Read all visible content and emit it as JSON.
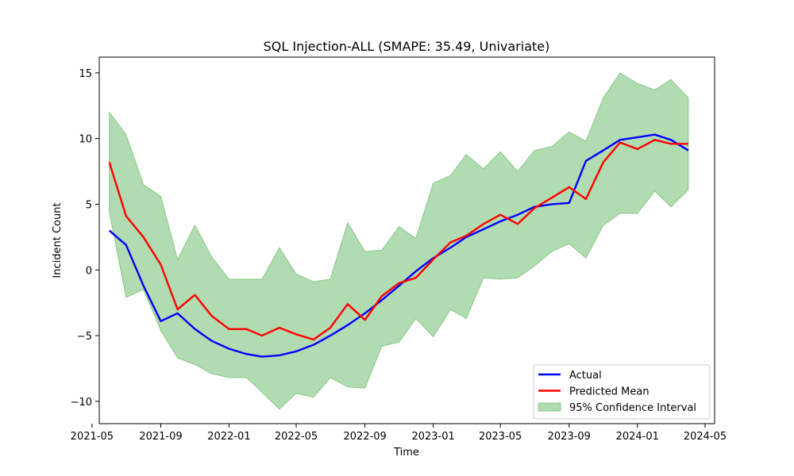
{
  "chart_data": {
    "type": "line",
    "title": "SQL Injection-ALL (SMAPE: 35.49, Univariate)",
    "xlabel": "Time",
    "ylabel": "Incident Count",
    "xlim": [
      "2021-05-14",
      "2024-05-18"
    ],
    "ylim": [
      -11.7,
      16.2
    ],
    "x_ticks": [
      "2021-05",
      "2021-09",
      "2022-01",
      "2022-05",
      "2022-09",
      "2023-01",
      "2023-05",
      "2023-09",
      "2024-01",
      "2024-05"
    ],
    "y_ticks": [
      -10,
      -5,
      0,
      5,
      10,
      15
    ],
    "x": [
      "2021-06",
      "2021-07",
      "2021-08",
      "2021-09",
      "2021-10",
      "2021-11",
      "2021-12",
      "2022-01",
      "2022-02",
      "2022-03",
      "2022-04",
      "2022-05",
      "2022-06",
      "2022-07",
      "2022-08",
      "2022-09",
      "2022-10",
      "2022-11",
      "2022-12",
      "2023-01",
      "2023-02",
      "2023-03",
      "2023-04",
      "2023-05",
      "2023-06",
      "2023-07",
      "2023-08",
      "2023-09",
      "2023-10",
      "2023-11",
      "2023-12",
      "2024-01",
      "2024-02",
      "2024-03",
      "2024-04"
    ],
    "series": [
      {
        "name": "Actual",
        "kind": "line",
        "color": "#0000ff",
        "values": [
          3.0,
          1.9,
          -1.2,
          -3.9,
          -3.3,
          -4.5,
          -5.4,
          -6.0,
          -6.4,
          -6.6,
          -6.5,
          -6.2,
          -5.7,
          -5.0,
          -4.2,
          -3.3,
          -2.3,
          -1.2,
          -0.1,
          0.9,
          1.7,
          2.5,
          3.1,
          3.7,
          4.2,
          4.8,
          5.0,
          5.1,
          8.3,
          9.1,
          9.9,
          10.1,
          10.3,
          9.9,
          9.1
        ]
      },
      {
        "name": "Predicted Mean",
        "kind": "line",
        "color": "#ff0000",
        "values": [
          8.2,
          4.1,
          2.5,
          0.4,
          -3.0,
          -1.9,
          -3.5,
          -4.5,
          -4.5,
          -5.0,
          -4.4,
          -4.9,
          -5.3,
          -4.4,
          -2.6,
          -3.8,
          -2.0,
          -1.0,
          -0.6,
          0.8,
          2.1,
          2.6,
          3.5,
          4.2,
          3.5,
          4.7,
          5.5,
          6.3,
          5.4,
          8.2,
          9.7,
          9.2,
          9.9,
          9.6,
          9.6
        ]
      }
    ],
    "confidence_interval": {
      "name": "95% Confidence Interval",
      "color": "#2ca02c",
      "opacity": 0.37,
      "lower": [
        4.4,
        -2.1,
        -1.5,
        -4.6,
        -6.7,
        -7.2,
        -7.9,
        -8.2,
        -8.2,
        -9.3,
        -10.6,
        -9.4,
        -9.7,
        -8.2,
        -8.9,
        -9.0,
        -5.8,
        -5.5,
        -3.7,
        -5.1,
        -3.0,
        -3.7,
        -0.6,
        -0.7,
        -0.6,
        0.3,
        1.4,
        2.0,
        0.9,
        3.4,
        4.3,
        4.3,
        6.0,
        4.8,
        6.1
      ],
      "upper": [
        12.0,
        10.3,
        6.5,
        5.6,
        0.8,
        3.4,
        1.0,
        -0.7,
        -0.7,
        -0.7,
        1.7,
        -0.3,
        -0.9,
        -0.7,
        3.6,
        1.4,
        1.5,
        3.3,
        2.4,
        6.6,
        7.2,
        8.8,
        7.7,
        9.0,
        7.5,
        9.1,
        9.4,
        10.5,
        9.8,
        13.1,
        15.0,
        14.2,
        13.7,
        14.5,
        13.1
      ]
    },
    "legend_position": "lower right",
    "grid": false
  }
}
